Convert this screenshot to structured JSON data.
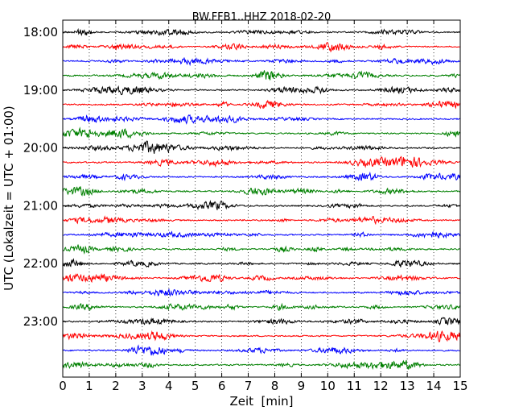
{
  "chart_data": {
    "type": "line",
    "title": "BW.FFB1..HHZ 2018-02-20",
    "xlabel": "Zeit  [min]",
    "ylabel": "UTC (Lokalzeit = UTC + 01:00)",
    "xlim": [
      0,
      15
    ],
    "x_ticks": [
      0,
      1,
      2,
      3,
      4,
      5,
      6,
      7,
      8,
      9,
      10,
      11,
      12,
      13,
      14,
      15
    ],
    "x_tick_labels": [
      "0",
      "1",
      "2",
      "3",
      "4",
      "5",
      "6",
      "7",
      "8",
      "9",
      "10",
      "11",
      "12",
      "13",
      "14",
      "15"
    ],
    "y_tick_labels": [
      "18:00",
      "19:00",
      "20:00",
      "21:00",
      "22:00",
      "23:00"
    ],
    "y_tick_trace_index": [
      0,
      4,
      8,
      12,
      16,
      20
    ],
    "trace_minutes": 15,
    "trace_colors": [
      "#000000",
      "#ff0000",
      "#0000ff",
      "#008000"
    ],
    "grid": "vertical-dotted",
    "series": [
      {
        "start": "18:00"
      },
      {
        "start": "18:15"
      },
      {
        "start": "18:30"
      },
      {
        "start": "18:45"
      },
      {
        "start": "19:00"
      },
      {
        "start": "19:15"
      },
      {
        "start": "19:30"
      },
      {
        "start": "19:45"
      },
      {
        "start": "20:00"
      },
      {
        "start": "20:15"
      },
      {
        "start": "20:30"
      },
      {
        "start": "20:45"
      },
      {
        "start": "21:00"
      },
      {
        "start": "21:15"
      },
      {
        "start": "21:30"
      },
      {
        "start": "21:45"
      },
      {
        "start": "22:00"
      },
      {
        "start": "22:15"
      },
      {
        "start": "22:30"
      },
      {
        "start": "22:45"
      },
      {
        "start": "23:00"
      },
      {
        "start": "23:15"
      },
      {
        "start": "23:30"
      },
      {
        "start": "23:45"
      }
    ]
  }
}
